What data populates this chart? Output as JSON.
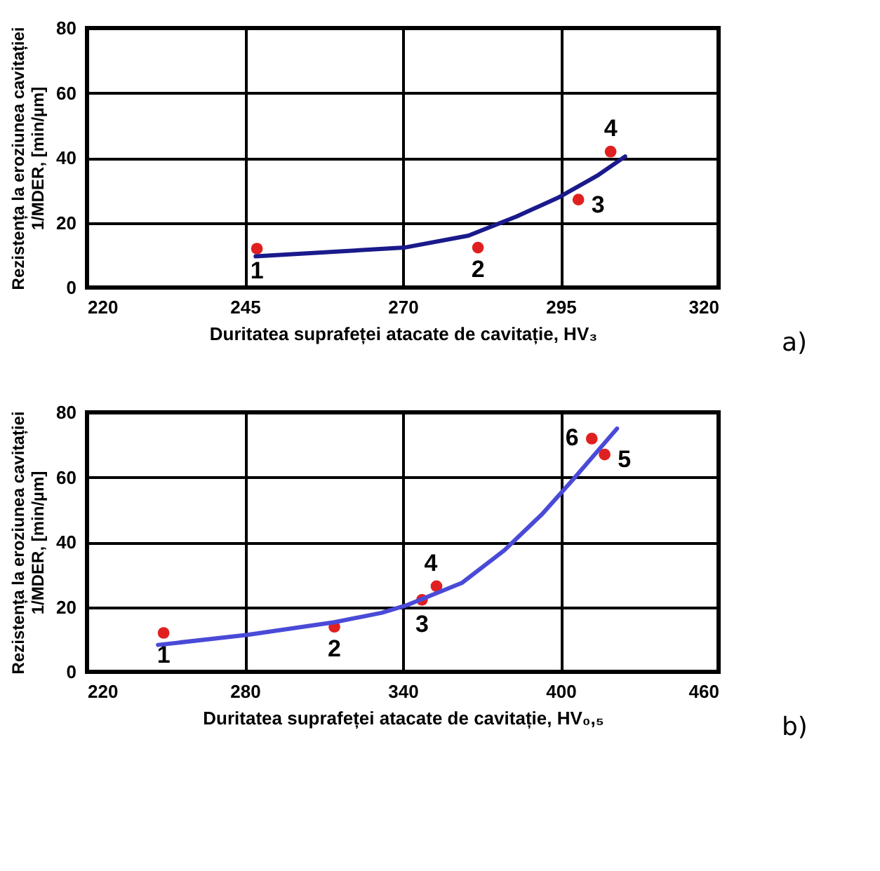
{
  "chart_data": [
    {
      "type": "scatter",
      "xlabel": "Duritatea suprafeței atacate de cavitație, HV₃",
      "ylabel": "Rezistența la eroziunea cavitației\n1/MDER, [min/µm]",
      "x": [
        246.9,
        281.9,
        297.8,
        302.9
      ],
      "series": [
        {
          "color": "#e02020",
          "values": [
            12.0,
            12.3,
            27.1,
            41.9
          ]
        },
        {
          "type": "line",
          "marker": "none",
          "line_style": "solid",
          "color": "#1a1a8c",
          "x": [
            246.7,
            270.2,
            280.4,
            288.0,
            294.8,
            300.8,
            305.2
          ],
          "values": [
            9.6,
            12.3,
            16.0,
            21.9,
            27.9,
            34.5,
            40.4
          ]
        }
      ],
      "xlim": [
        220,
        320
      ],
      "xticks": [
        220,
        245,
        270,
        295,
        320
      ],
      "ylim": [
        0,
        80
      ],
      "yticks": [
        0,
        20,
        40,
        60,
        80
      ],
      "grid": true,
      "marker": "circle",
      "annotations": [
        {
          "text": "1",
          "x": 246.9,
          "y": 12.0
        },
        {
          "text": "2",
          "x": 281.9,
          "y": 12.3
        },
        {
          "text": "3",
          "x": 297.8,
          "y": 27.1
        },
        {
          "text": "4",
          "x": 302.9,
          "y": 41.9
        },
        "a)"
      ]
    },
    {
      "type": "scatter",
      "xlabel": "Duritatea suprafeței atacate de cavitație, HV₀,₅",
      "ylabel": "Rezistența la eroziunea cavitației\n1/MDER, [min/µm]",
      "x": [
        249.1,
        314.0,
        347.3,
        352.8,
        416.7,
        411.8
      ],
      "series": [
        {
          "color": "#e02020",
          "values": [
            12.0,
            13.9,
            22.2,
            26.4,
            67.0,
            71.9
          ]
        },
        {
          "type": "line",
          "marker": "none",
          "line_style": "solid",
          "color": "#4a4ad8",
          "x": [
            247.0,
            281.0,
            314.0,
            331.9,
            342.0,
            362.4,
            378.6,
            392.9,
            405.1,
            421.4
          ],
          "values": [
            8.3,
            11.4,
            15.3,
            18.2,
            20.7,
            27.4,
            37.5,
            48.6,
            59.7,
            75.0
          ]
        }
      ],
      "xlim": [
        220,
        460
      ],
      "xticks": [
        220,
        280,
        340,
        400,
        460
      ],
      "ylim": [
        0,
        80
      ],
      "yticks": [
        0,
        20,
        40,
        60,
        80
      ],
      "grid": true,
      "marker": "circle",
      "annotations": [
        {
          "text": "1",
          "x": 249.1,
          "y": 12.0
        },
        {
          "text": "2",
          "x": 314.0,
          "y": 13.9
        },
        {
          "text": "3",
          "x": 347.3,
          "y": 22.2
        },
        {
          "text": "4",
          "x": 352.8,
          "y": 26.4
        },
        {
          "text": "5",
          "x": 416.7,
          "y": 67.0
        },
        {
          "text": "6",
          "x": 411.8,
          "y": 71.9
        },
        "b)"
      ]
    }
  ]
}
